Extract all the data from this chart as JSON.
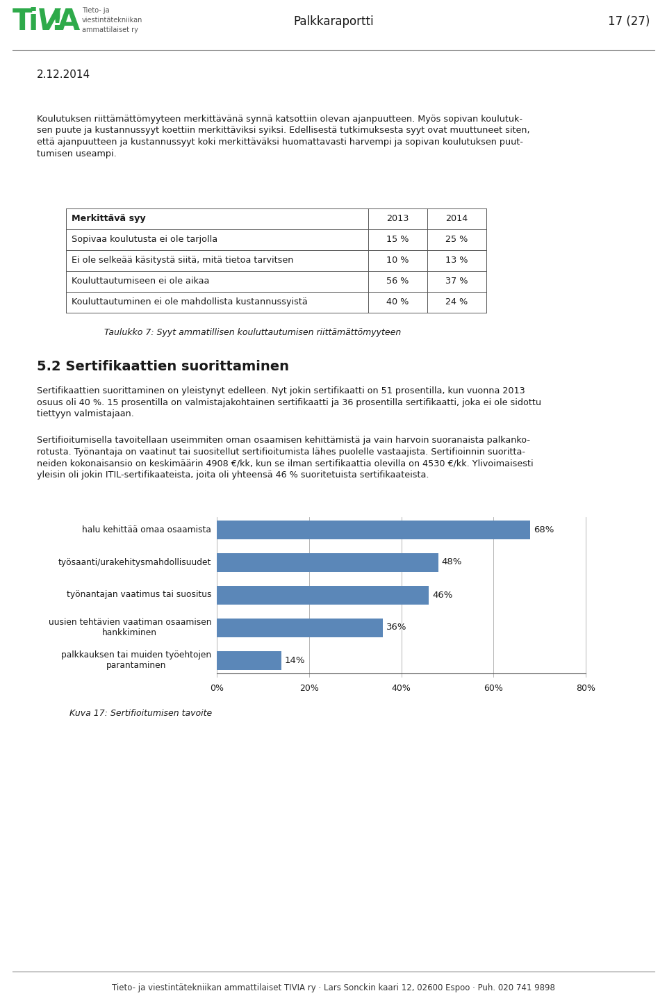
{
  "page_title": "Palkkaraportti",
  "page_number": "17 (27)",
  "date": "2.12.2014",
  "logo_color": "#2EAA4A",
  "logo_subtext": "Tieto- ja\nviestintätekniikan\nammattilaiset ry",
  "body_text_1a": "Koulutuksen riittämättömyyteen merkittävänä synnä katsottiin olevan ajanpuutteen. Myös sopivan koulutuk-",
  "body_text_1b": "sen puute ja kustannussyyt koettiin merkittäviksi syiksi. Edellisestä tutkimuksesta syyt ovat muuttuneet siten,",
  "body_text_1c": "että ajanpuutteen ja kustannussyyt koki merkittäväksi huomattavasti harvempi ja sopivan koulutuksen puut-",
  "body_text_1d": "tumisen useampi.",
  "table_header": [
    "Merkittävä syy",
    "2013",
    "2014"
  ],
  "table_rows": [
    [
      "Sopivaa koulutusta ei ole tarjolla",
      "15 %",
      "25 %"
    ],
    [
      "Ei ole selkeää käsitystä siitä, mitä tietoa tarvitsen",
      "10 %",
      "13 %"
    ],
    [
      "Kouluttautumiseen ei ole aikaa",
      "56 %",
      "37 %"
    ],
    [
      "Kouluttautuminen ei ole mahdollista kustannussyistä",
      "40 %",
      "24 %"
    ]
  ],
  "table_caption": "Taulukko 7: Syyt ammatillisen kouluttautumisen riittämättömyyteen",
  "section_title": "5.2 Sertifikaattien suorittaminen",
  "body_text_2a": "Sertifikaattien suorittaminen on yleistynyt edelleen. Nyt jokin sertifikaatti on 51 prosentilla, kun vuonna 2013",
  "body_text_2b": "osuus oli 40 %. 15 prosentilla on valmistajakohtainen sertifikaatti ja 36 prosentilla sertifikaatti, joka ei ole sidottu",
  "body_text_2c": "tiettyyn valmistajaan.",
  "body_text_3a": "Sertifioitumisella tavoitellaan useimmiten oman osaamisen kehittämistä ja vain harvoin suoranaista palkanko-",
  "body_text_3b": "rotusta. Työnantaja on vaatinut tai suositellut sertifioitumista lähes puolelle vastaajista. Sertifioinnin suoritta-",
  "body_text_3c": "neiden kokonaisansio on keskimäärin 4908 €/kk, kun se ilman sertifikaattia olevilla on 4530 €/kk. Ylivoimaisesti",
  "body_text_3d": "yleisin oli jokin ITIL-sertifikaateista, joita oli yhteensä 46 % suoritetuista sertifikaateista.",
  "chart_categories": [
    "halu kehittää omaa osaamista",
    "työsaanti/urakehitysmahdollisuudet",
    "työnantajan vaatimus tai suositus",
    "uusien tehtävien vaatiman osaamisen\nhankkiminen",
    "palkkauksen tai muiden työehtojen\nparantaminen"
  ],
  "chart_values": [
    0.68,
    0.48,
    0.46,
    0.36,
    0.14
  ],
  "chart_labels": [
    "68%",
    "48%",
    "46%",
    "36%",
    "14%"
  ],
  "chart_color": "#5B87B8",
  "chart_caption": "Kuva 17: Sertifioitumisen tavoite",
  "footer_text": "Tieto- ja viestintätekniikan ammattilaiset TIVIA ry · Lars Sonckin kaari 12, 02600 Espoo · Puh. 020 741 9898",
  "background_color": "#ffffff",
  "text_color": "#1a1a1a"
}
